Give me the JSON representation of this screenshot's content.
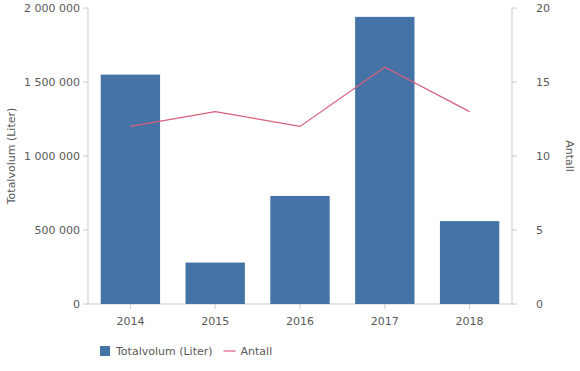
{
  "chart_data": {
    "type": "bar",
    "y_label": "Totalvolum (Liter)",
    "y2_label": "Antall",
    "categories": [
      "2014",
      "2015",
      "2016",
      "2017",
      "2018"
    ],
    "series": [
      {
        "name": "Totalvolum (Liter)",
        "type": "bar",
        "color": "#4573a8",
        "values": [
          1550000,
          280000,
          730000,
          1940000,
          560000
        ]
      },
      {
        "name": "Antall",
        "type": "line",
        "axis": "y2",
        "color": "#d7607a",
        "values": [
          12,
          13,
          12,
          16,
          13
        ]
      }
    ],
    "ylim": [
      0,
      2000000
    ],
    "yticks": [
      0,
      {
        "value": 500000,
        "label": "500 000"
      },
      {
        "value": 1000000,
        "label": "1 000 000"
      },
      {
        "value": 1500000,
        "label": "1 500 000"
      },
      {
        "value": 2000000,
        "label": "2 000 000"
      }
    ],
    "y2lim": [
      0,
      20
    ],
    "y2ticks": [
      0,
      5,
      10,
      15,
      20
    ],
    "grid": false,
    "legend": "bottom"
  }
}
